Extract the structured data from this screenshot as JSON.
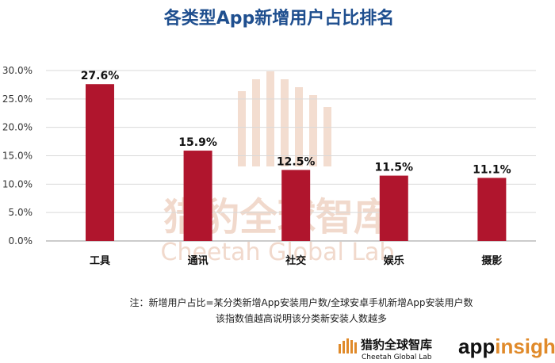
{
  "chart_data": {
    "type": "bar",
    "title": "各类型App新增用户占比排名",
    "categories": [
      "工具",
      "通讯",
      "社交",
      "娱乐",
      "摄影"
    ],
    "values": [
      27.6,
      15.9,
      12.5,
      11.5,
      11.1
    ],
    "data_labels": [
      "27.6%",
      "15.9%",
      "12.5%",
      "11.5%",
      "11.1%"
    ],
    "ylim": [
      0,
      30
    ],
    "yticks": [
      0,
      5,
      10,
      15,
      20,
      25,
      30
    ],
    "ytick_labels": [
      "0.0%",
      "5.0%",
      "10.0%",
      "15.0%",
      "20.0%",
      "25.0%",
      "30.0%"
    ],
    "grid": true,
    "bar_color": "#b0152d",
    "grid_color": "#d9d9d9"
  },
  "note": {
    "line1": "注：新增用户占比=某分类新增App安装用户数/全球安卓手机新增App安装用户数",
    "line2": "该指数值越高说明该分类新安装人数越多"
  },
  "watermark": {
    "cn": "猎豹全球智库",
    "en": "Cheetah Global Lab"
  },
  "footer": {
    "brand_cn": "猎豹全球智库",
    "brand_en": "Cheetah Global Lab",
    "partner_app": "app",
    "partner_insight": "insight",
    "accent_color": "#e08a2a"
  }
}
